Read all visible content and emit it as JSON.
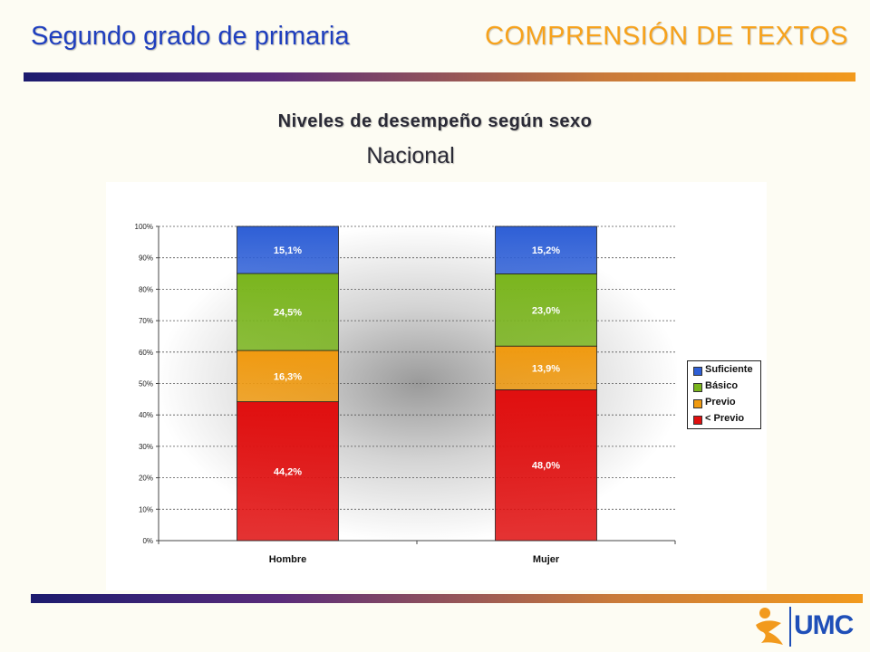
{
  "header": {
    "left_title": "Segundo grado de primaria",
    "right_title": "COMPRENSIÓN DE TEXTOS"
  },
  "logo": {
    "text": "UMC"
  },
  "colors": {
    "suficiente": "#2e5fd6",
    "basico": "#7ab51d",
    "previo": "#f09a10",
    "menos_previo": "#e00f0f"
  },
  "chart_data": {
    "type": "bar",
    "stacked": true,
    "title": "Niveles de desempeño según sexo",
    "subtitle": "Nacional",
    "categories": [
      "Hombre",
      "Mujer"
    ],
    "series": [
      {
        "name": "< Previo",
        "values": [
          44.2,
          48.0
        ],
        "labels": [
          "44,2%",
          "48,0%"
        ]
      },
      {
        "name": "Previo",
        "values": [
          16.3,
          13.9
        ],
        "labels": [
          "16,3%",
          "13,9%"
        ]
      },
      {
        "name": "Básico",
        "values": [
          24.5,
          23.0
        ],
        "labels": [
          "24,5%",
          "23,0%"
        ]
      },
      {
        "name": "Suficiente",
        "values": [
          15.1,
          15.2
        ],
        "labels": [
          "15,1%",
          "15,2%"
        ]
      }
    ],
    "yticks": [
      "0%",
      "10%",
      "20%",
      "30%",
      "40%",
      "50%",
      "60%",
      "70%",
      "80%",
      "90%",
      "100%"
    ],
    "ylim": [
      0,
      100
    ],
    "grid": true,
    "legend": {
      "position": "right",
      "entries": [
        "Suficiente",
        "Básico",
        "Previo",
        "< Previo"
      ]
    }
  }
}
